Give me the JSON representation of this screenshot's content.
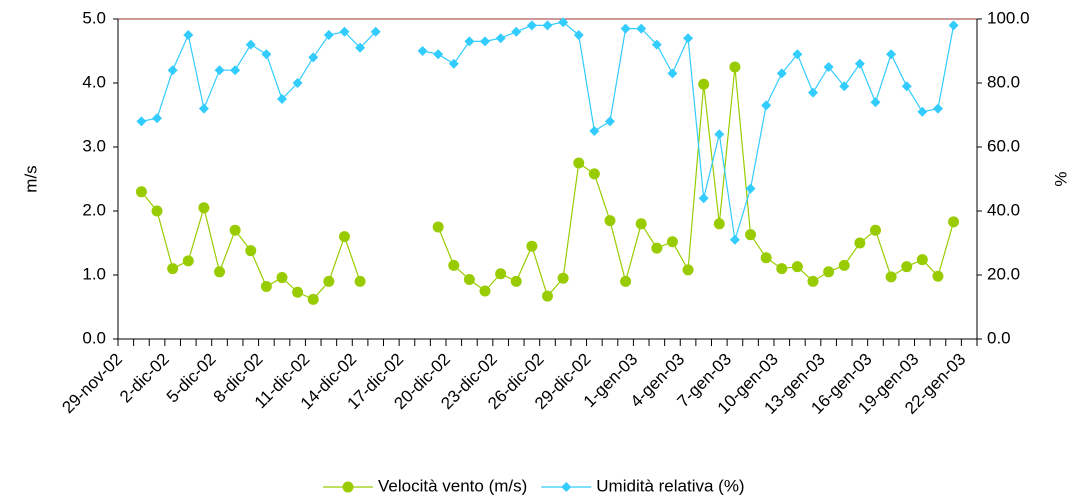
{
  "chart_data": {
    "type": "line",
    "categories": [
      "29-nov-02",
      null,
      null,
      "2-dic-02",
      null,
      null,
      "5-dic-02",
      null,
      null,
      "8-dic-02",
      null,
      null,
      "11-dic-02",
      null,
      null,
      "14-dic-02",
      null,
      null,
      "17-dic-02",
      null,
      null,
      "20-dic-02",
      null,
      null,
      "23-dic-02",
      null,
      null,
      "26-dic-02",
      null,
      null,
      "29-dic-02",
      null,
      null,
      "1-gen-03",
      null,
      null,
      "4-gen-03",
      null,
      null,
      "7-gen-03",
      null,
      null,
      "10-gen-03",
      null,
      null,
      "13-gen-03",
      null,
      null,
      "16-gen-03",
      null,
      null,
      "19-gen-03",
      null,
      null,
      "22-gen-03"
    ],
    "series": [
      {
        "name": "Velocità vento (m/s)",
        "color": "#99cc00",
        "marker": "circle",
        "values": [
          null,
          2.3,
          2.0,
          1.1,
          1.22,
          2.05,
          1.05,
          1.7,
          1.38,
          0.82,
          0.96,
          0.73,
          0.62,
          0.9,
          1.6,
          0.9,
          null,
          null,
          null,
          null,
          1.75,
          1.15,
          0.93,
          0.75,
          1.02,
          0.9,
          1.45,
          0.67,
          0.95,
          2.75,
          2.58,
          1.85,
          0.9,
          1.8,
          1.42,
          1.52,
          1.08,
          3.98,
          1.8,
          4.25,
          1.63,
          1.27,
          1.1,
          1.13,
          0.9,
          1.05,
          1.15,
          1.5,
          1.7,
          0.97,
          1.13,
          1.24,
          0.98,
          1.83,
          null
        ]
      },
      {
        "name": "Umidità relativa (%)",
        "color": "#33ccff",
        "marker": "diamond",
        "axis": "y2",
        "values": [
          null,
          68,
          69,
          84,
          95,
          72,
          84,
          84,
          92,
          89,
          75,
          80,
          88,
          95,
          96,
          91,
          96,
          null,
          null,
          90,
          89,
          86,
          93,
          93,
          94,
          96,
          98,
          98,
          99,
          95,
          65,
          68,
          97,
          97,
          92,
          83,
          94,
          44,
          64,
          31,
          47,
          73,
          83,
          89,
          77,
          85,
          79,
          86,
          74,
          89,
          79,
          71,
          72,
          98,
          null
        ]
      }
    ],
    "y_label": "m/s",
    "y2_label": "%",
    "ylim": [
      0,
      5
    ],
    "yticks": [
      {
        "value": 0,
        "label": "0.0"
      },
      {
        "value": 1,
        "label": "1.0"
      },
      {
        "value": 2,
        "label": "2.0"
      },
      {
        "value": 3,
        "label": "3.0"
      },
      {
        "value": 4,
        "label": "4.0"
      },
      {
        "value": 5,
        "label": "5.0"
      }
    ],
    "y2lim": [
      0,
      100
    ],
    "y2ticks": [
      {
        "value": 0,
        "label": "0.0"
      },
      {
        "value": 20,
        "label": "20.0"
      },
      {
        "value": 40,
        "label": "40.0"
      },
      {
        "value": 60,
        "label": "60.0"
      },
      {
        "value": 80,
        "label": "80.0"
      },
      {
        "value": 100,
        "label": "100.0"
      }
    ],
    "grid": false,
    "legend": "bottom"
  }
}
